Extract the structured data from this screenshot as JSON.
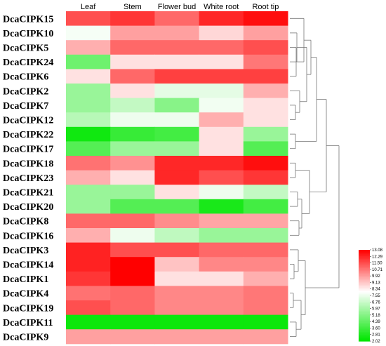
{
  "chart_data": {
    "type": "heatmap",
    "columns": [
      "Leaf",
      "Stem",
      "Flower bud",
      "White root",
      "Root tip"
    ],
    "rows": [
      "DcaCIPK15",
      "DcaCIPK10",
      "DcaCIPK5",
      "DcaCIPK24",
      "DcaCIPK6",
      "DcaCIPK2",
      "DcaCIPK7",
      "DcaCIPK12",
      "DcaCIPK22",
      "DcaCIPK17",
      "DcaCIPK18",
      "DcaCIPK23",
      "DcaCIPK21",
      "DcaCIPK20",
      "DcaCIPK8",
      "DcaCIPK16",
      "DcaCIPK3",
      "DcaCIPK14",
      "DcaCIPK1",
      "DcaCIPK4",
      "DcaCIPK19",
      "DcaCIPK11",
      "DcaCIPK9"
    ],
    "values": [
      [
        11.5,
        12.0,
        11.0,
        12.3,
        12.8
      ],
      [
        7.8,
        9.9,
        9.9,
        8.8,
        9.9
      ],
      [
        9.6,
        11.0,
        11.0,
        11.0,
        11.5
      ],
      [
        4.6,
        8.6,
        8.6,
        8.6,
        10.7
      ],
      [
        8.6,
        11.0,
        11.8,
        11.8,
        11.8
      ],
      [
        5.6,
        8.6,
        7.4,
        7.4,
        9.6
      ],
      [
        5.6,
        6.6,
        5.2,
        7.7,
        8.6
      ],
      [
        6.3,
        7.6,
        7.6,
        9.6,
        8.6
      ],
      [
        2.4,
        3.3,
        3.6,
        8.6,
        5.6
      ],
      [
        4.0,
        5.6,
        5.6,
        8.6,
        4.0
      ],
      [
        10.8,
        10.2,
        12.3,
        12.3,
        12.8
      ],
      [
        9.6,
        8.6,
        12.3,
        11.5,
        12.0
      ],
      [
        5.6,
        5.6,
        8.6,
        7.6,
        6.6
      ],
      [
        5.6,
        4.0,
        4.0,
        2.6,
        3.6
      ],
      [
        11.0,
        11.0,
        10.3,
        9.8,
        9.8
      ],
      [
        9.6,
        7.6,
        6.5,
        5.6,
        5.6
      ],
      [
        12.4,
        11.5,
        11.5,
        11.0,
        11.0
      ],
      [
        12.4,
        13.08,
        9.2,
        10.4,
        10.4
      ],
      [
        12.0,
        13.08,
        8.6,
        8.6,
        9.6
      ],
      [
        10.8,
        11.0,
        10.4,
        10.4,
        10.7
      ],
      [
        11.5,
        11.0,
        10.4,
        10.4,
        10.7
      ],
      [
        2.3,
        2.3,
        2.3,
        2.3,
        2.3
      ],
      [
        9.9,
        9.9,
        9.9,
        9.9,
        9.9
      ]
    ],
    "color_scale": {
      "min": 2.02,
      "max": 13.08,
      "low_color": "#00e600",
      "mid_color": "#ffffff",
      "high_color": "#ff0000",
      "mid_value": 8.0,
      "ticks": [
        "13.08",
        "12.29",
        "11.50",
        "10.71",
        "9.92",
        "9.13",
        "8.34",
        "7.55",
        "6.76",
        "5.97",
        "5.18",
        "4.39",
        "3.60",
        "2.81",
        "2.02"
      ]
    },
    "legend_position": "bottom-right",
    "dendrogram": "row clustering shown on right side"
  }
}
